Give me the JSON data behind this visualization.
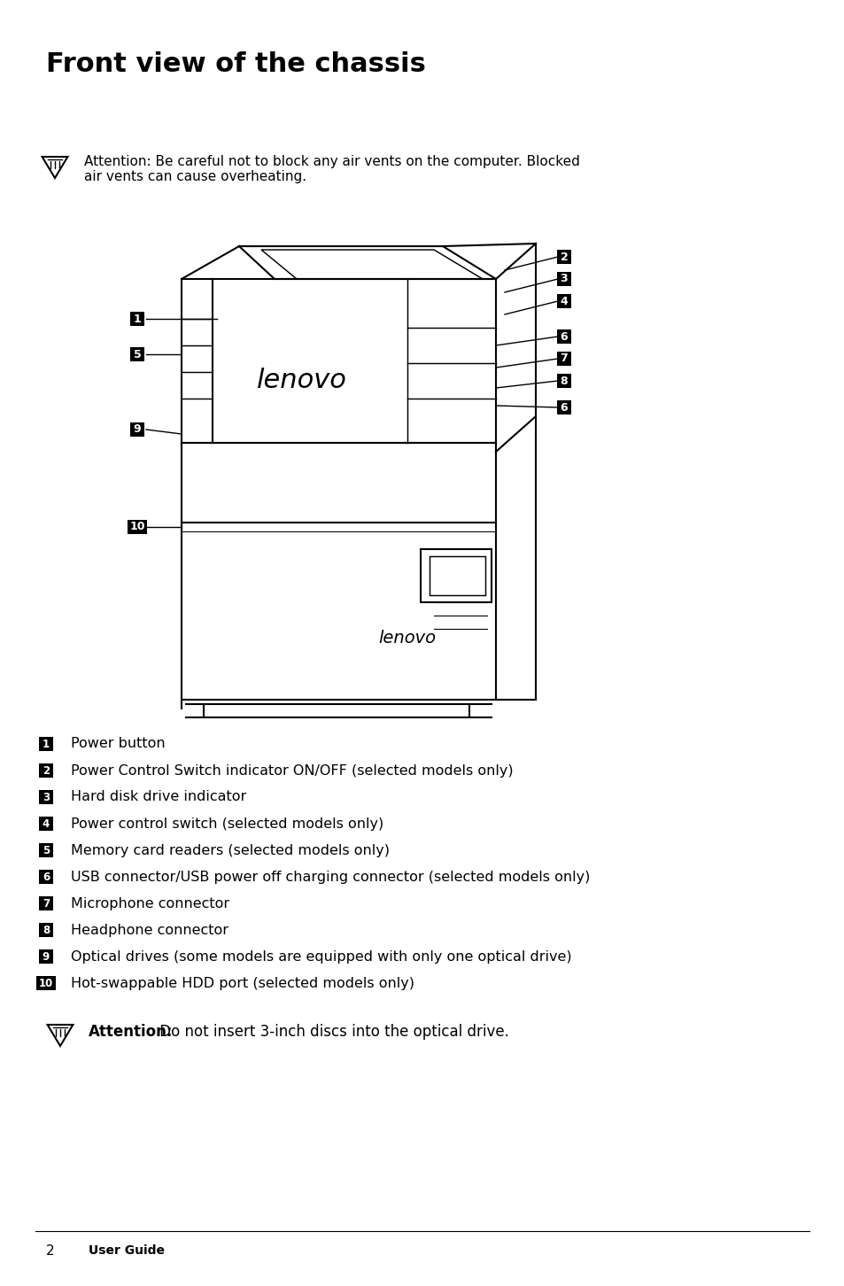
{
  "title": "Front view of the chassis",
  "title_fontsize": 22,
  "title_fontweight": "bold",
  "attention1_text": "Attention: Be careful not to block any air vents on the computer. Blocked\nair vents can cause overheating.",
  "attention2_text": "Attention: Do not insert 3-inch discs into the optical drive.",
  "footer_text": "2      User Guide",
  "items": [
    {
      "num": "1",
      "desc": "Power button"
    },
    {
      "num": "2",
      "desc": "Power Control Switch indicator ON/OFF (selected models only)"
    },
    {
      "num": "3",
      "desc": "Hard disk drive indicator"
    },
    {
      "num": "4",
      "desc": "Power control switch (selected models only)"
    },
    {
      "num": "5",
      "desc": "Memory card readers (selected models only)"
    },
    {
      "num": "6",
      "desc": "USB connector/USB power off charging connector (selected models only)"
    },
    {
      "num": "7",
      "desc": "Microphone connector"
    },
    {
      "num": "8",
      "desc": "Headphone connector"
    },
    {
      "num": "9",
      "desc": "Optical drives (some models are equipped with only one optical drive)"
    },
    {
      "num": "10",
      "desc": "Hot-swappable HDD port (selected models only)"
    }
  ],
  "bg_color": "#ffffff",
  "text_color": "#000000",
  "label_bg_color": "#000000",
  "label_text_color": "#ffffff"
}
